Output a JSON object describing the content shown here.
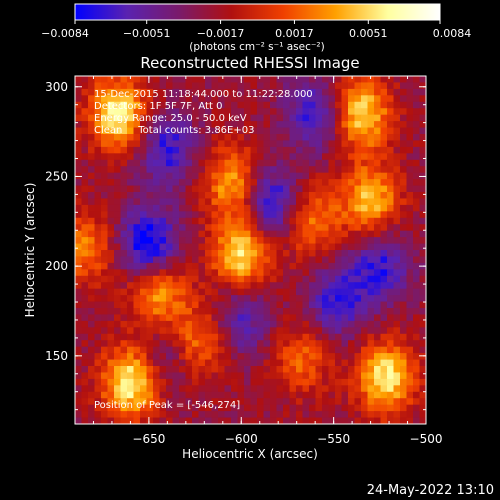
{
  "chart_data": {
    "type": "heatmap",
    "title": "Reconstructed RHESSI Image",
    "xlabel": "Heliocentric X (arcsec)",
    "ylabel": "Heliocentric Y (arcsec)",
    "xlim": [
      -690,
      -500
    ],
    "ylim": [
      112,
      306
    ],
    "x_ticks": [
      -650,
      -600,
      -550,
      -500
    ],
    "x_tick_labels": [
      "−650",
      "−600",
      "−550",
      "−500"
    ],
    "y_ticks": [
      150,
      200,
      250,
      300
    ],
    "y_tick_labels": [
      "150",
      "200",
      "250",
      "300"
    ],
    "colorbar": {
      "range": [
        -0.0084,
        0.0084
      ],
      "ticks": [
        -0.0084,
        -0.0051,
        -0.0017,
        0.0017,
        0.0051,
        0.0084
      ],
      "tick_labels": [
        "−0.0084",
        "−0.0051",
        "−0.0017",
        "0.0017",
        "0.0051",
        "0.0084"
      ],
      "unit_label": "(photons cm⁻² s⁻¹ asec⁻²)",
      "colors": [
        "#0000ff",
        "#5a22b0",
        "#7a1a6a",
        "#b01010",
        "#f04000",
        "#ffa000",
        "#ffffa0",
        "#ffffff"
      ]
    },
    "annotations": [
      "15-Dec-2015 11:18:44.000 to 11:22:28.000",
      "Detectors: 1F 5F 7F, Att 0",
      "Energy Range: 25.0 - 50.0 keV",
      "Clean     Total counts: 3.86E+03"
    ],
    "peak_label": "Position of Peak = [-546,274]",
    "sources": [
      {
        "x": -667,
        "y": 285,
        "amp": 0.0084
      },
      {
        "x": -535,
        "y": 285,
        "amp": 0.0076
      },
      {
        "x": -530,
        "y": 237,
        "amp": 0.0068
      },
      {
        "x": -605,
        "y": 247,
        "amp": 0.006
      },
      {
        "x": -600,
        "y": 207,
        "amp": 0.0078
      },
      {
        "x": -645,
        "y": 185,
        "amp": 0.006
      },
      {
        "x": -562,
        "y": 225,
        "amp": 0.005
      },
      {
        "x": -623,
        "y": 158,
        "amp": 0.005
      },
      {
        "x": -660,
        "y": 135,
        "amp": 0.0084
      },
      {
        "x": -522,
        "y": 138,
        "amp": 0.008
      },
      {
        "x": -567,
        "y": 148,
        "amp": 0.004
      },
      {
        "x": -685,
        "y": 210,
        "amp": 0.005
      },
      {
        "x": -650,
        "y": 212,
        "amp": -0.007
      },
      {
        "x": -583,
        "y": 235,
        "amp": -0.006
      },
      {
        "x": -525,
        "y": 200,
        "amp": -0.005
      },
      {
        "x": -640,
        "y": 265,
        "amp": -0.005
      },
      {
        "x": -600,
        "y": 170,
        "amp": -0.004
      },
      {
        "x": -560,
        "y": 285,
        "amp": -0.005
      },
      {
        "x": -640,
        "y": 150,
        "amp": -0.003
      },
      {
        "x": -548,
        "y": 180,
        "amp": -0.005
      }
    ],
    "grid": false,
    "legend": "none"
  },
  "footer": {
    "timestamp": "24-May-2022 13:10"
  }
}
